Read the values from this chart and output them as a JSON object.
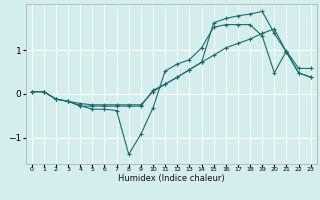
{
  "xlabel": "Humidex (Indice chaleur)",
  "bg_color": "#d4eeee",
  "grid_color": "#ffffff",
  "line_color": "#1a6b6b",
  "xlim": [
    -0.5,
    23.5
  ],
  "ylim": [
    -1.6,
    2.05
  ],
  "yticks": [
    -1,
    0,
    1
  ],
  "xticks": [
    0,
    1,
    2,
    3,
    4,
    5,
    6,
    7,
    8,
    9,
    10,
    11,
    12,
    13,
    14,
    15,
    16,
    17,
    18,
    19,
    20,
    21,
    22,
    23
  ],
  "series": [
    {
      "x": [
        0,
        1,
        2,
        3,
        4,
        5,
        6,
        7,
        8,
        9,
        10,
        11,
        12,
        13,
        14,
        15,
        16,
        17,
        18,
        19,
        20,
        21,
        22,
        23
      ],
      "y": [
        0.05,
        0.05,
        -0.12,
        -0.17,
        -0.27,
        -0.35,
        -0.35,
        -0.38,
        -1.38,
        -0.92,
        -0.32,
        0.52,
        0.68,
        0.78,
        1.05,
        1.52,
        1.58,
        1.58,
        1.58,
        1.32,
        0.48,
        0.98,
        0.58,
        0.58
      ]
    },
    {
      "x": [
        0,
        1,
        2,
        3,
        4,
        5,
        6,
        7,
        8,
        9,
        10,
        11,
        12,
        13,
        14,
        15,
        16,
        17,
        18,
        19,
        20,
        21,
        22,
        23
      ],
      "y": [
        0.05,
        0.05,
        -0.12,
        -0.17,
        -0.28,
        -0.28,
        -0.28,
        -0.28,
        -0.28,
        -0.28,
        0.08,
        0.22,
        0.38,
        0.55,
        0.72,
        0.88,
        1.05,
        1.15,
        1.25,
        1.38,
        1.48,
        0.95,
        0.48,
        0.38
      ]
    },
    {
      "x": [
        0,
        1,
        2,
        3,
        4,
        5,
        6,
        7,
        8,
        9,
        10,
        11,
        12,
        13,
        14,
        15,
        16,
        17,
        18,
        19,
        20,
        21,
        22,
        23
      ],
      "y": [
        0.05,
        0.05,
        -0.12,
        -0.17,
        -0.22,
        -0.25,
        -0.25,
        -0.25,
        -0.25,
        -0.25,
        0.05,
        0.22,
        0.38,
        0.55,
        0.72,
        1.62,
        1.72,
        1.78,
        1.82,
        1.88,
        1.38,
        0.95,
        0.48,
        0.38
      ]
    }
  ]
}
